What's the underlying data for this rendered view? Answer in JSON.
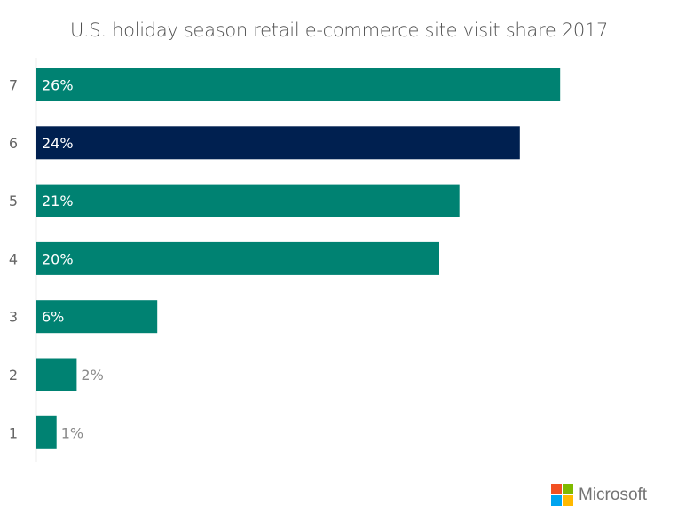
{
  "chart_data": {
    "type": "bar",
    "orientation": "horizontal",
    "title": "U.S. holiday season retail e-commerce site visit share 2017",
    "categories": [
      "7",
      "6",
      "5",
      "4",
      "3",
      "2",
      "1"
    ],
    "values": [
      26,
      24,
      21,
      20,
      6,
      2,
      1
    ],
    "data_labels": [
      "26%",
      "24%",
      "21%",
      "20%",
      "6%",
      "2%",
      "1%"
    ],
    "highlight_category": "6",
    "xlabel": "",
    "ylabel": "",
    "xlim": [
      0,
      27
    ],
    "grid": false,
    "colors": {
      "default": "#008272",
      "highlight": "#002050",
      "label_inside": "#ffffff",
      "label_outside": "#8a8a8a",
      "tick": "#666666"
    }
  },
  "logo": {
    "text": "Microsoft",
    "colors": [
      "#f25022",
      "#7fba00",
      "#00a4ef",
      "#ffb900"
    ]
  }
}
